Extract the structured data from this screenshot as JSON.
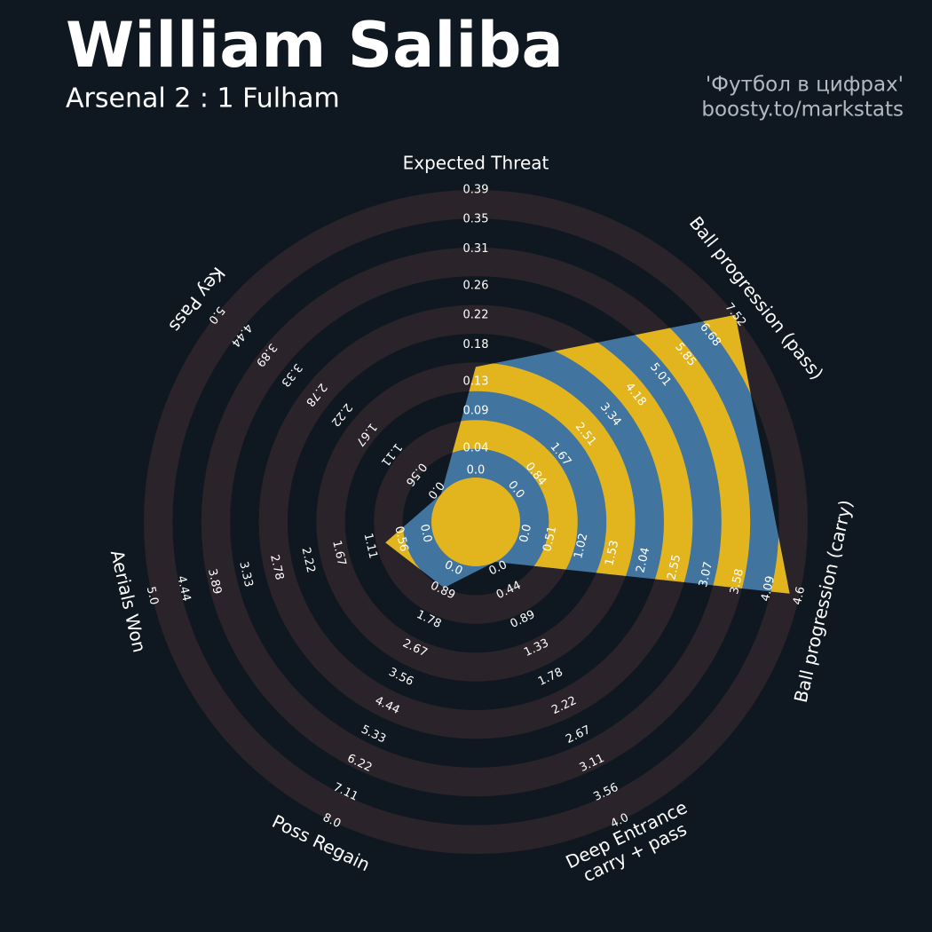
{
  "chart_data": {
    "type": "radar",
    "title": "William Saliba",
    "subtitle": "Arsenal 2 : 1 Fulham",
    "credits": [
      "'Футбол в цифрах'",
      "boosty.to/markstats"
    ],
    "categories": [
      "Expected Threat",
      "Ball progression (pass)",
      "Ball progression (carry)",
      [
        "Deep Entrance",
        "carry + pass"
      ],
      "Poss Regain",
      "Aerials Won",
      "Key Pass"
    ],
    "values": [
      0.15,
      7.52,
      4.44,
      0,
      0.8,
      0.84,
      0
    ],
    "axis_ticks": [
      [
        {
          "value": 0,
          "label": "0.0"
        },
        0.04,
        0.09,
        0.13,
        0.18,
        0.22,
        0.26,
        0.31,
        0.35,
        0.39
      ],
      [
        {
          "value": 0,
          "label": "0.0"
        },
        0.84,
        1.67,
        2.51,
        3.34,
        4.18,
        5.01,
        5.85,
        6.68,
        7.52
      ],
      [
        {
          "value": 0,
          "label": "0.0"
        },
        0.51,
        1.02,
        1.53,
        2.04,
        2.55,
        3.07,
        3.58,
        4.09,
        4.6
      ],
      [
        {
          "value": 0,
          "label": "0.0"
        },
        0.44,
        0.89,
        1.33,
        1.78,
        2.22,
        2.67,
        3.11,
        3.56,
        {
          "value": 4,
          "label": "4.0"
        }
      ],
      [
        {
          "value": 0,
          "label": "0.0"
        },
        0.89,
        1.78,
        2.67,
        3.56,
        4.44,
        5.33,
        6.22,
        7.11,
        {
          "value": 8,
          "label": "8.0"
        }
      ],
      [
        {
          "value": 0,
          "label": "0.0"
        },
        0.56,
        1.11,
        1.67,
        2.22,
        2.78,
        3.33,
        3.89,
        4.44,
        {
          "value": 5,
          "label": "5.0"
        }
      ],
      [
        {
          "value": 0,
          "label": "0.0"
        },
        0.56,
        1.11,
        1.67,
        2.22,
        2.78,
        3.33,
        3.89,
        4.44,
        {
          "value": 5,
          "label": "5.0"
        }
      ]
    ],
    "polygon_color": "#4274a0",
    "highlight_color": "#e2b51e",
    "ring_color": "#2a2329"
  }
}
